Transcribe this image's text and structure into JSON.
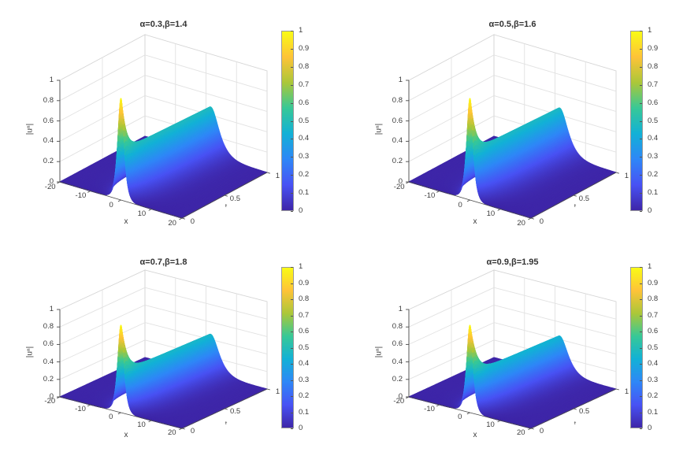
{
  "figure": {
    "kind": "matlab-style figure, 2x2 grid of 3D surface plots with colorbars",
    "background": "#ffffff",
    "rows": 2,
    "cols": 2,
    "colormap_name": "parula",
    "colormap_anchors": [
      "#3e26a8",
      "#4852f4",
      "#2e87f7",
      "#12b1d6",
      "#37c897",
      "#abc739",
      "#fec338",
      "#f9fb15"
    ],
    "grid_color": "#e2e2e2",
    "wall_edge_color": "#d5d5d5",
    "axis_color": "#4a4a4a",
    "tick_text_color": "#3d3d3d",
    "title_color": "#333333"
  },
  "axes_common": {
    "xlabel": "x",
    "ylabel": "t",
    "zlabel": "|uⁿ|",
    "x_ticks": [
      "-20",
      "-10",
      "0",
      "10",
      "20"
    ],
    "y_ticks": [
      "0",
      "0.5",
      "1"
    ],
    "z_ticks": [
      "0",
      "0.2",
      "0.4",
      "0.6",
      "0.8",
      "1"
    ],
    "colorbar_ticks": [
      "0",
      "0.1",
      "0.2",
      "0.3",
      "0.4",
      "0.5",
      "0.6",
      "0.7",
      "0.8",
      "0.9",
      "1"
    ],
    "colorbar_range": [
      0,
      1
    ]
  },
  "chart_data": [
    {
      "type": "surface",
      "title": "α=0.3,β=1.4",
      "alpha": 0.3,
      "beta": 1.4,
      "xlabel": "x",
      "ylabel": "t",
      "zlabel": "|uⁿ|",
      "xlim": [
        -20,
        20
      ],
      "ylim": [
        0,
        1
      ],
      "zlim": [
        0,
        1
      ],
      "colormap": "parula",
      "legend": "none",
      "grid": true,
      "surface_model": {
        "formula": "z(x,t) = A(t)*sech((x - c*t)/w(t)); A(t)=A_inf+(1-A_inf)*exp(-t/tau); w(t)=w_inf-(w_inf-w0)*exp(-t/tau_w)",
        "peak": {
          "x": 0,
          "t": 0,
          "z": 1.0
        },
        "A_inf": 0.48,
        "tau": 0.05,
        "w0": 0.9,
        "w_inf": 2.4,
        "tau_w": 0.12,
        "drift_c": 1.5
      }
    },
    {
      "type": "surface",
      "title": "α=0.5,β=1.6",
      "alpha": 0.5,
      "beta": 1.6,
      "xlabel": "x",
      "ylabel": "t",
      "zlabel": "|uⁿ|",
      "xlim": [
        -20,
        20
      ],
      "ylim": [
        0,
        1
      ],
      "zlim": [
        0,
        1
      ],
      "colormap": "parula",
      "legend": "none",
      "grid": true,
      "surface_model": {
        "formula": "z(x,t) = A(t)*sech((x - c*t)/w(t)); A(t)=A_inf+(1-A_inf)*exp(-t/tau); w(t)=w_inf-(w_inf-w0)*exp(-t/tau_w)",
        "peak": {
          "x": 0,
          "t": 0,
          "z": 1.0
        },
        "A_inf": 0.47,
        "tau": 0.055,
        "w0": 0.9,
        "w_inf": 2.4,
        "tau_w": 0.12,
        "drift_c": 1.5
      }
    },
    {
      "type": "surface",
      "title": "α=0.7,β=1.8",
      "alpha": 0.7,
      "beta": 1.8,
      "xlabel": "x",
      "ylabel": "t",
      "zlabel": "|uⁿ|",
      "xlim": [
        -20,
        20
      ],
      "ylim": [
        0,
        1
      ],
      "zlim": [
        0,
        1
      ],
      "colormap": "parula",
      "legend": "none",
      "grid": true,
      "surface_model": {
        "formula": "z(x,t) = A(t)*sech((x - c*t)/w(t)); A(t)=A_inf+(1-A_inf)*exp(-t/tau); w(t)=w_inf-(w_inf-w0)*exp(-t/tau_w)",
        "peak": {
          "x": 0,
          "t": 0,
          "z": 1.0
        },
        "A_inf": 0.46,
        "tau": 0.06,
        "w0": 0.9,
        "w_inf": 2.4,
        "tau_w": 0.12,
        "drift_c": 1.5
      }
    },
    {
      "type": "surface",
      "title": "α=0.9,β=1.95",
      "alpha": 0.9,
      "beta": 1.95,
      "xlabel": "x",
      "ylabel": "t",
      "zlabel": "|uⁿ|",
      "xlim": [
        -20,
        20
      ],
      "ylim": [
        0,
        1
      ],
      "zlim": [
        0,
        1
      ],
      "colormap": "parula",
      "legend": "none",
      "grid": true,
      "surface_model": {
        "formula": "z(x,t) = A(t)*sech((x - c*t)/w(t)); A(t)=A_inf+(1-A_inf)*exp(-t/tau); w(t)=w_inf-(w_inf-w0)*exp(-t/tau_w)",
        "peak": {
          "x": 0,
          "t": 0,
          "z": 1.0
        },
        "A_inf": 0.44,
        "tau": 0.065,
        "w0": 0.9,
        "w_inf": 2.4,
        "tau_w": 0.12,
        "drift_c": 1.5
      }
    }
  ]
}
